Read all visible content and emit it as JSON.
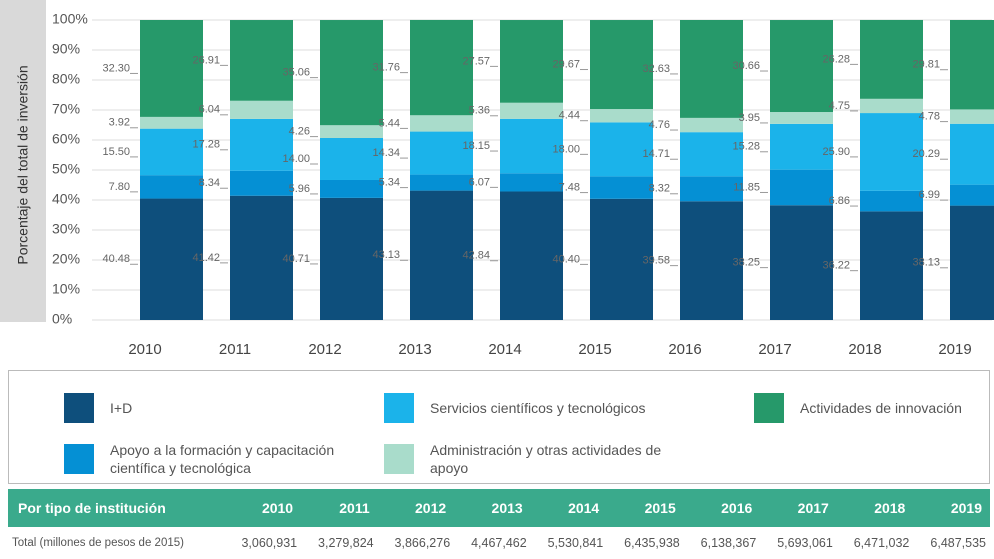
{
  "chart_data": {
    "type": "stacked_bar",
    "y_label": "Porcentaje del total de inversión",
    "categories": [
      "2010",
      "2011",
      "2012",
      "2013",
      "2014",
      "2015",
      "2016",
      "2017",
      "2018",
      "2019"
    ],
    "ylim": [
      0,
      100
    ],
    "yticks": [
      {
        "value": 0,
        "label": "0%"
      },
      {
        "value": 10,
        "label": "10%"
      },
      {
        "value": 20,
        "label": "20%"
      },
      {
        "value": 30,
        "label": "30%"
      },
      {
        "value": 40,
        "label": "40%"
      },
      {
        "value": 50,
        "label": "50%"
      },
      {
        "value": 60,
        "label": "60%"
      },
      {
        "value": 70,
        "label": "70%"
      },
      {
        "value": 80,
        "label": "80%"
      },
      {
        "value": 90,
        "label": "90%"
      },
      {
        "value": 100,
        "label": "100%"
      }
    ],
    "grid": true,
    "series": [
      {
        "name": "I+D",
        "color": "#0e4f7c",
        "values": [
          40.48,
          41.42,
          40.71,
          43.13,
          42.84,
          40.4,
          39.58,
          38.25,
          36.22,
          38.13
        ],
        "value_labels": [
          "40.48",
          "41.42",
          "40.71",
          "43.13",
          "42.84",
          "40.40",
          "39.58",
          "38.25",
          "36.22",
          "38.13"
        ]
      },
      {
        "name": "Apoyo a la formación y capacitación científica y tecnológica",
        "color": "#0590d4",
        "values": [
          7.8,
          8.34,
          5.96,
          5.34,
          6.07,
          7.48,
          8.32,
          11.85,
          6.86,
          6.99
        ],
        "value_labels": [
          "7.80",
          "8.34",
          "5.96",
          "5.34",
          "6.07",
          "7.48",
          "8.32",
          "11.85",
          "6.86",
          "6.99"
        ]
      },
      {
        "name": "Servicios científicos y tecnológicos",
        "color": "#1bb3ea",
        "values": [
          15.5,
          17.28,
          14.0,
          14.34,
          18.15,
          18.0,
          14.71,
          15.28,
          25.9,
          20.29
        ],
        "value_labels": [
          "15.50",
          "17.28",
          "14.00",
          "14.34",
          "18.15",
          "18.00",
          "14.71",
          "15.28",
          "25.90",
          "20.29"
        ]
      },
      {
        "name": "Administración y otras actividades de apoyo",
        "color": "#a9dccb",
        "values": [
          3.92,
          6.04,
          4.26,
          5.44,
          5.36,
          4.44,
          4.76,
          3.95,
          4.75,
          4.78
        ],
        "value_labels": [
          "3.92",
          "6.04",
          "4.26",
          "5.44",
          "5.36",
          "4.44",
          "4.76",
          "3.95",
          "4.75",
          "4.78"
        ]
      },
      {
        "name": "Actividades de innovación",
        "color": "#26996a",
        "values": [
          32.3,
          26.91,
          35.06,
          31.76,
          27.57,
          29.67,
          32.63,
          30.66,
          26.28,
          29.81
        ],
        "value_labels": [
          "32.30",
          "26.91",
          "35.06",
          "31.76",
          "27.57",
          "29.67",
          "32.63",
          "30.66",
          "26.28",
          "29.81"
        ]
      }
    ]
  },
  "table": {
    "header": [
      "Por tipo de institución",
      "2010",
      "2011",
      "2012",
      "2013",
      "2014",
      "2015",
      "2016",
      "2017",
      "2018",
      "2019"
    ],
    "rows": [
      [
        "Total (millones de pesos de 2015)",
        "3,060,931",
        "3,279,824",
        "3,866,276",
        "4,467,462",
        "5,530,841",
        "6,435,938",
        "6,138,367",
        "5,693,061",
        "6,471,032",
        "6,487,535"
      ]
    ]
  }
}
